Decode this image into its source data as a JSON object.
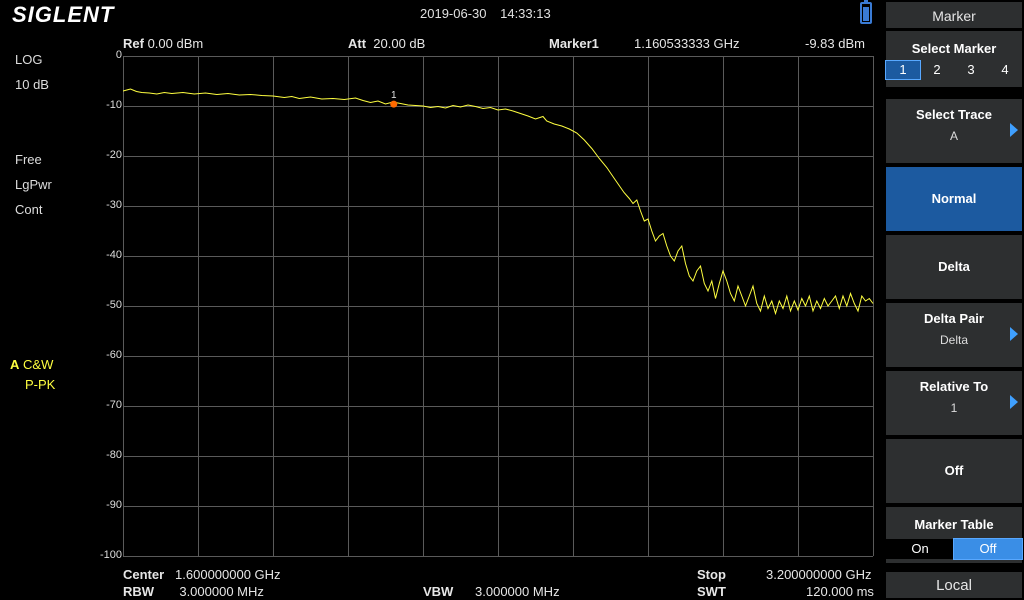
{
  "brand": "SIGLENT",
  "datetime": "2019-06-30   14:33:13",
  "header": {
    "ref_label": "Ref",
    "ref_value": "0.00 dBm",
    "att_label": "Att",
    "att_value": "20.00 dB",
    "marker_label": "Marker1",
    "marker_freq": "1.160533333 GHz",
    "marker_value": "-9.83 dBm"
  },
  "left_info": [
    "LOG",
    "10 dB",
    "Free",
    "LgPwr",
    "Cont"
  ],
  "trace_info": {
    "trace": "A",
    "mode": "C&W",
    "detector": "P-PK"
  },
  "y_axis": [
    "0",
    "-10",
    "-20",
    "-30",
    "-40",
    "-50",
    "-60",
    "-70",
    "-80",
    "-90",
    "-100"
  ],
  "marker_number": "1",
  "footer": {
    "center_label": "Center",
    "center_value": "1.600000000 GHz",
    "rbw_label": "RBW",
    "rbw_value": "3.000000 MHz",
    "vbw_label": "VBW",
    "vbw_value": "3.000000 MHz",
    "stop_label": "Stop",
    "stop_value": "3.200000000 GHz",
    "swt_label": "SWT",
    "swt_value": "120.000 ms"
  },
  "menu": {
    "title": "Marker",
    "select_marker_label": "Select Marker",
    "markers": [
      "1",
      "2",
      "3",
      "4"
    ],
    "select_trace_label": "Select Trace",
    "select_trace_value": "A",
    "normal_label": "Normal",
    "delta_label": "Delta",
    "delta_pair_label": "Delta Pair",
    "delta_pair_value": "Delta",
    "relative_to_label": "Relative To",
    "relative_to_value": "1",
    "off_label": "Off",
    "marker_table_label": "Marker Table",
    "marker_table_on": "On",
    "marker_table_off": "Off",
    "local_label": "Local"
  },
  "colors": {
    "trace": "#ffff40",
    "marker": "#ff6a00",
    "accent": "#1c5aa0",
    "grid": "#5a5a5a"
  },
  "trace_points": [
    [
      0,
      -7.0
    ],
    [
      0.005,
      -6.8
    ],
    [
      0.01,
      -6.6
    ],
    [
      0.018,
      -7.1
    ],
    [
      0.025,
      -7.3
    ],
    [
      0.035,
      -7.4
    ],
    [
      0.045,
      -7.6
    ],
    [
      0.055,
      -7.3
    ],
    [
      0.065,
      -7.5
    ],
    [
      0.08,
      -7.3
    ],
    [
      0.095,
      -7.6
    ],
    [
      0.11,
      -7.4
    ],
    [
      0.125,
      -7.7
    ],
    [
      0.14,
      -7.5
    ],
    [
      0.155,
      -7.8
    ],
    [
      0.17,
      -7.7
    ],
    [
      0.185,
      -7.9
    ],
    [
      0.2,
      -8.0
    ],
    [
      0.215,
      -8.3
    ],
    [
      0.225,
      -8.1
    ],
    [
      0.235,
      -8.5
    ],
    [
      0.25,
      -8.2
    ],
    [
      0.265,
      -8.6
    ],
    [
      0.28,
      -8.5
    ],
    [
      0.295,
      -8.7
    ],
    [
      0.31,
      -8.4
    ],
    [
      0.32,
      -8.9
    ],
    [
      0.33,
      -9.3
    ],
    [
      0.34,
      -9.0
    ],
    [
      0.35,
      -9.6
    ],
    [
      0.36,
      -9.2
    ],
    [
      0.37,
      -9.5
    ],
    [
      0.38,
      -9.8
    ],
    [
      0.39,
      -9.9
    ],
    [
      0.4,
      -10.0
    ],
    [
      0.41,
      -10.3
    ],
    [
      0.42,
      -10.1
    ],
    [
      0.43,
      -10.4
    ],
    [
      0.44,
      -9.9
    ],
    [
      0.45,
      -10.2
    ],
    [
      0.46,
      -9.8
    ],
    [
      0.47,
      -10.1
    ],
    [
      0.48,
      -10.5
    ],
    [
      0.49,
      -10.3
    ],
    [
      0.5,
      -10.8
    ],
    [
      0.51,
      -10.6
    ],
    [
      0.52,
      -11.0
    ],
    [
      0.53,
      -11.5
    ],
    [
      0.54,
      -12.0
    ],
    [
      0.55,
      -12.6
    ],
    [
      0.56,
      -12.1
    ],
    [
      0.565,
      -13.0
    ],
    [
      0.575,
      -13.6
    ],
    [
      0.585,
      -14.0
    ],
    [
      0.595,
      -14.6
    ],
    [
      0.605,
      -15.4
    ],
    [
      0.615,
      -16.8
    ],
    [
      0.625,
      -18.5
    ],
    [
      0.635,
      -20.5
    ],
    [
      0.645,
      -22.3
    ],
    [
      0.655,
      -24.5
    ],
    [
      0.662,
      -26.0
    ],
    [
      0.668,
      -27.3
    ],
    [
      0.675,
      -28.5
    ],
    [
      0.68,
      -29.5
    ],
    [
      0.685,
      -28.8
    ],
    [
      0.69,
      -31.0
    ],
    [
      0.695,
      -33.0
    ],
    [
      0.7,
      -32.6
    ],
    [
      0.705,
      -35.0
    ],
    [
      0.71,
      -37.0
    ],
    [
      0.715,
      -36.0
    ],
    [
      0.72,
      -35.5
    ],
    [
      0.725,
      -38.0
    ],
    [
      0.73,
      -40.0
    ],
    [
      0.735,
      -41.0
    ],
    [
      0.74,
      -39.0
    ],
    [
      0.745,
      -38.0
    ],
    [
      0.75,
      -41.5
    ],
    [
      0.755,
      -44.0
    ],
    [
      0.76,
      -45.0
    ],
    [
      0.765,
      -43.0
    ],
    [
      0.77,
      -42.0
    ],
    [
      0.775,
      -45.5
    ],
    [
      0.78,
      -47.0
    ],
    [
      0.785,
      -45.0
    ],
    [
      0.79,
      -48.5
    ],
    [
      0.795,
      -45.5
    ],
    [
      0.8,
      -43.0
    ],
    [
      0.805,
      -45.0
    ],
    [
      0.81,
      -47.5
    ],
    [
      0.815,
      -49.0
    ],
    [
      0.82,
      -46.0
    ],
    [
      0.825,
      -48.0
    ],
    [
      0.83,
      -50.0
    ],
    [
      0.835,
      -48.0
    ],
    [
      0.84,
      -46.0
    ],
    [
      0.845,
      -49.5
    ],
    [
      0.85,
      -51.0
    ],
    [
      0.855,
      -48.0
    ],
    [
      0.86,
      -50.5
    ],
    [
      0.865,
      -49.0
    ],
    [
      0.87,
      -51.5
    ],
    [
      0.875,
      -49.0
    ],
    [
      0.88,
      -50.5
    ],
    [
      0.885,
      -48.0
    ],
    [
      0.89,
      -51.0
    ],
    [
      0.895,
      -49.0
    ],
    [
      0.9,
      -50.8
    ],
    [
      0.905,
      -48.5
    ],
    [
      0.91,
      -50.0
    ],
    [
      0.915,
      -48.0
    ],
    [
      0.92,
      -51.0
    ],
    [
      0.925,
      -49.0
    ],
    [
      0.93,
      -50.5
    ],
    [
      0.935,
      -48.5
    ],
    [
      0.94,
      -50.0
    ],
    [
      0.945,
      -49.0
    ],
    [
      0.95,
      -48.0
    ],
    [
      0.955,
      -50.5
    ],
    [
      0.96,
      -48.0
    ],
    [
      0.965,
      -50.0
    ],
    [
      0.97,
      -47.5
    ],
    [
      0.975,
      -49.5
    ],
    [
      0.98,
      -51.0
    ],
    [
      0.985,
      -48.0
    ],
    [
      0.99,
      -49.0
    ],
    [
      0.995,
      -48.5
    ],
    [
      1.0,
      -49.5
    ]
  ],
  "marker_point": [
    0.361,
    -9.83
  ]
}
